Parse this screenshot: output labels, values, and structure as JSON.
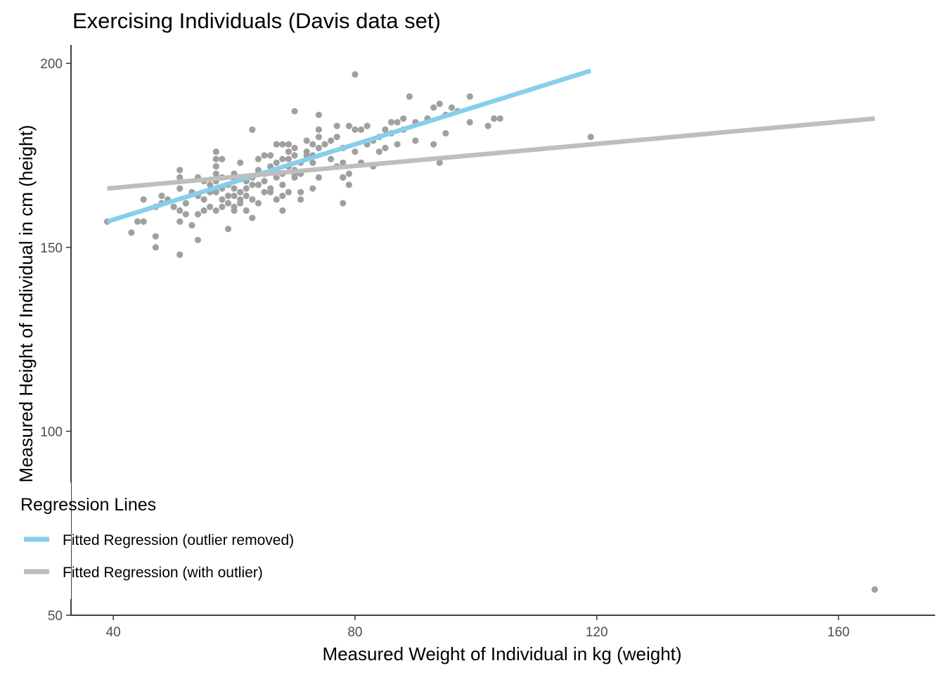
{
  "chart_data": {
    "type": "scatter",
    "title": "Exercising Individuals (Davis data set)",
    "xlabel": "Measured Weight of Individual in kg (weight)",
    "ylabel": "Measured Height of Individual in cm (height)",
    "xlim": [
      33,
      176
    ],
    "ylim": [
      50,
      205
    ],
    "x_ticks": [
      40,
      80,
      120,
      160
    ],
    "y_ticks": [
      50,
      100,
      150,
      200
    ],
    "grid": false,
    "legend": {
      "title": "Regression Lines",
      "placement": "bottom-left",
      "entries": [
        {
          "label": "Fitted Regression (outlier removed)",
          "color": "#87CEEB"
        },
        {
          "label": "Fitted Regression (with outlier)",
          "color": "#BEBEBE"
        }
      ]
    },
    "point_color": "#A0A0A0",
    "series": [
      {
        "kind": "points",
        "points": [
          [
            39,
            157
          ],
          [
            43,
            154
          ],
          [
            44,
            157
          ],
          [
            45,
            157
          ],
          [
            45,
            163
          ],
          [
            47,
            153
          ],
          [
            47,
            150
          ],
          [
            47,
            161
          ],
          [
            48,
            162
          ],
          [
            48,
            164
          ],
          [
            49,
            163
          ],
          [
            50,
            161
          ],
          [
            51,
            171
          ],
          [
            51,
            169
          ],
          [
            51,
            166
          ],
          [
            51,
            148
          ],
          [
            51,
            160
          ],
          [
            51,
            157
          ],
          [
            52,
            159
          ],
          [
            52,
            162
          ],
          [
            53,
            156
          ],
          [
            53,
            165
          ],
          [
            54,
            159
          ],
          [
            54,
            164
          ],
          [
            54,
            169
          ],
          [
            54,
            152
          ],
          [
            55,
            168
          ],
          [
            55,
            163
          ],
          [
            55,
            160
          ],
          [
            56,
            165
          ],
          [
            56,
            161
          ],
          [
            56,
            167
          ],
          [
            57,
            176
          ],
          [
            57,
            174
          ],
          [
            57,
            172
          ],
          [
            57,
            170
          ],
          [
            57,
            168
          ],
          [
            57,
            165
          ],
          [
            57,
            160
          ],
          [
            58,
            169
          ],
          [
            58,
            166
          ],
          [
            58,
            163
          ],
          [
            58,
            161
          ],
          [
            58,
            174
          ],
          [
            59,
            155
          ],
          [
            59,
            167
          ],
          [
            59,
            164
          ],
          [
            59,
            162
          ],
          [
            60,
            170
          ],
          [
            60,
            168
          ],
          [
            60,
            166
          ],
          [
            60,
            164
          ],
          [
            60,
            161
          ],
          [
            60,
            160
          ],
          [
            61,
            163
          ],
          [
            61,
            165
          ],
          [
            61,
            173
          ],
          [
            61,
            162
          ],
          [
            62,
            168
          ],
          [
            62,
            166
          ],
          [
            62,
            164
          ],
          [
            62,
            160
          ],
          [
            63,
            182
          ],
          [
            63,
            169
          ],
          [
            63,
            167
          ],
          [
            63,
            163
          ],
          [
            63,
            158
          ],
          [
            64,
            171
          ],
          [
            64,
            174
          ],
          [
            64,
            170
          ],
          [
            64,
            167
          ],
          [
            64,
            162
          ],
          [
            65,
            165
          ],
          [
            65,
            168
          ],
          [
            65,
            175
          ],
          [
            65,
            170
          ],
          [
            66,
            175
          ],
          [
            66,
            172
          ],
          [
            66,
            166
          ],
          [
            66,
            165
          ],
          [
            67,
            169
          ],
          [
            67,
            178
          ],
          [
            67,
            173
          ],
          [
            67,
            171
          ],
          [
            67,
            163
          ],
          [
            68,
            167
          ],
          [
            68,
            160
          ],
          [
            68,
            164
          ],
          [
            68,
            178
          ],
          [
            68,
            174
          ],
          [
            68,
            170
          ],
          [
            69,
            165
          ],
          [
            69,
            176
          ],
          [
            69,
            172
          ],
          [
            69,
            178
          ],
          [
            69,
            174
          ],
          [
            70,
            170
          ],
          [
            70,
            171
          ],
          [
            70,
            169
          ],
          [
            70,
            177
          ],
          [
            70,
            187
          ],
          [
            70,
            175
          ],
          [
            71,
            163
          ],
          [
            71,
            165
          ],
          [
            71,
            173
          ],
          [
            71,
            170
          ],
          [
            72,
            176
          ],
          [
            72,
            175
          ],
          [
            72,
            179
          ],
          [
            73,
            178
          ],
          [
            73,
            175
          ],
          [
            73,
            173
          ],
          [
            73,
            166
          ],
          [
            74,
            169
          ],
          [
            74,
            177
          ],
          [
            74,
            182
          ],
          [
            74,
            180
          ],
          [
            74,
            186
          ],
          [
            75,
            178
          ],
          [
            76,
            174
          ],
          [
            76,
            179
          ],
          [
            77,
            183
          ],
          [
            77,
            172
          ],
          [
            77,
            180
          ],
          [
            78,
            169
          ],
          [
            78,
            173
          ],
          [
            78,
            177
          ],
          [
            78,
            169
          ],
          [
            78,
            162
          ],
          [
            79,
            183
          ],
          [
            79,
            170
          ],
          [
            79,
            167
          ],
          [
            80,
            176
          ],
          [
            80,
            182
          ],
          [
            80,
            197
          ],
          [
            81,
            173
          ],
          [
            81,
            182
          ],
          [
            82,
            183
          ],
          [
            82,
            178
          ],
          [
            83,
            172
          ],
          [
            83,
            179
          ],
          [
            84,
            176
          ],
          [
            84,
            180
          ],
          [
            85,
            177
          ],
          [
            85,
            182
          ],
          [
            86,
            181
          ],
          [
            86,
            184
          ],
          [
            87,
            178
          ],
          [
            87,
            184
          ],
          [
            88,
            182
          ],
          [
            88,
            185
          ],
          [
            89,
            191
          ],
          [
            90,
            179
          ],
          [
            90,
            184
          ],
          [
            92,
            185
          ],
          [
            93,
            188
          ],
          [
            93,
            178
          ],
          [
            94,
            189
          ],
          [
            94,
            173
          ],
          [
            95,
            181
          ],
          [
            95,
            186
          ],
          [
            96,
            188
          ],
          [
            97,
            187
          ],
          [
            99,
            191
          ],
          [
            99,
            184
          ],
          [
            102,
            183
          ],
          [
            103,
            185
          ],
          [
            104,
            185
          ],
          [
            119,
            180
          ],
          [
            166,
            57
          ]
        ]
      },
      {
        "kind": "line",
        "name": "Fitted Regression (outlier removed)",
        "color": "#87CEEB",
        "points": [
          [
            39,
            157
          ],
          [
            119,
            198
          ]
        ]
      },
      {
        "kind": "line",
        "name": "Fitted Regression (with outlier)",
        "color": "#BEBEBE",
        "points": [
          [
            39,
            166
          ],
          [
            166,
            185
          ]
        ]
      }
    ]
  }
}
